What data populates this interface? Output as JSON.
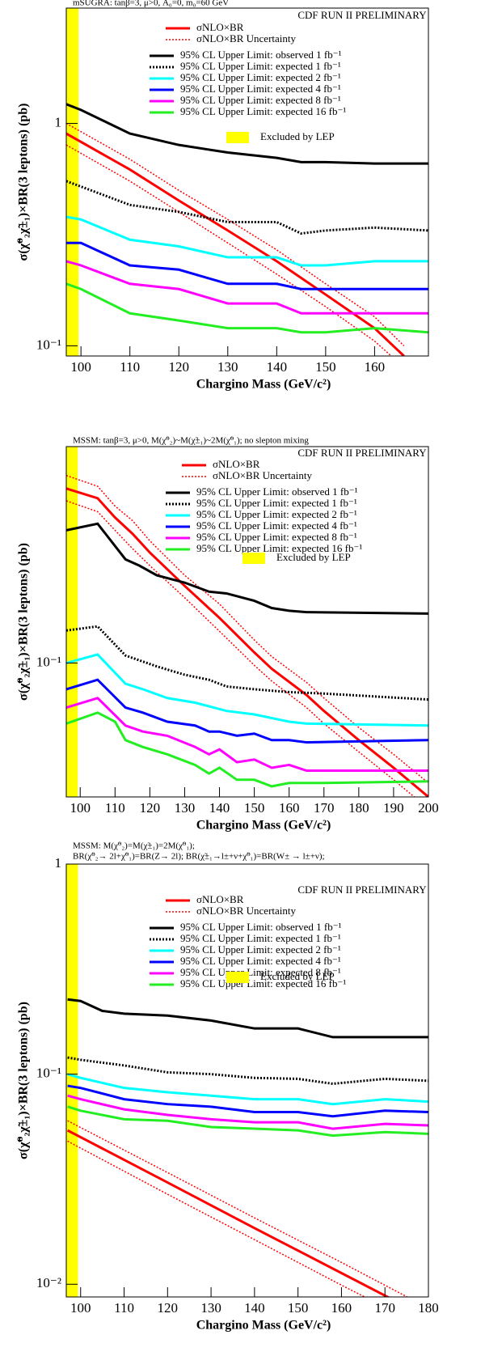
{
  "chart_data": [
    {
      "type": "line",
      "header": [
        "mSUGRA: tanβ=3, μ>0, A₀=0, m₀=60 GeV"
      ],
      "legend_title": "CDF RUN II PRELIMINARY",
      "x_label": "Chargino Mass (GeV/c²)",
      "y_label": "σ(χ̃⁰₂χ̃±₁)×BR(3 leptons) (pb)",
      "xlim": [
        97,
        171
      ],
      "ylim": [
        0.09,
        3.3
      ],
      "log_y": true,
      "xticks": [
        100,
        110,
        120,
        130,
        140,
        150,
        160
      ],
      "yticks": [
        1,
        {
          "value": 0.1,
          "label": "10⁻¹"
        }
      ],
      "sigma": {
        "name": "σNLO×BR",
        "color": "#ff0000",
        "x": [
          97,
          110,
          120,
          130,
          140,
          150,
          160,
          166
        ],
        "values": [
          0.9,
          0.62,
          0.45,
          0.33,
          0.24,
          0.17,
          0.12,
          0.09
        ]
      },
      "uncertainty": {
        "name": "σNLO×BR Uncertainty",
        "color": "#ff0000",
        "x": [
          97,
          110,
          120,
          130,
          140,
          150,
          160,
          166
        ],
        "upper": [
          1.0,
          0.69,
          0.5,
          0.37,
          0.27,
          0.19,
          0.135,
          0.1
        ],
        "lower": [
          0.8,
          0.55,
          0.4,
          0.29,
          0.21,
          0.15,
          0.105,
          0.08
        ]
      },
      "series": [
        {
          "name": "95% CL Upper Limit: observed 1 fb⁻¹",
          "color": "#000000",
          "style": "solid",
          "x": [
            97,
            100,
            110,
            120,
            130,
            140,
            145,
            150,
            160,
            171
          ],
          "values": [
            1.22,
            1.15,
            0.9,
            0.8,
            0.74,
            0.7,
            0.67,
            0.67,
            0.66,
            0.66
          ]
        },
        {
          "name": "95% CL Upper Limit: expected 1 fb⁻¹",
          "color": "#000000",
          "style": "dotted",
          "x": [
            97,
            100,
            110,
            120,
            130,
            140,
            145,
            150,
            160,
            171
          ],
          "values": [
            0.55,
            0.52,
            0.43,
            0.4,
            0.36,
            0.36,
            0.32,
            0.33,
            0.34,
            0.33
          ]
        },
        {
          "name": "95% CL Upper Limit: expected 2 fb⁻¹",
          "color": "#00ffff",
          "style": "solid",
          "x": [
            97,
            100,
            110,
            120,
            130,
            140,
            145,
            150,
            160,
            171
          ],
          "values": [
            0.38,
            0.37,
            0.3,
            0.28,
            0.25,
            0.25,
            0.23,
            0.23,
            0.24,
            0.24
          ]
        },
        {
          "name": "95% CL Upper Limit: expected 4 fb⁻¹",
          "color": "#0000ff",
          "style": "solid",
          "x": [
            97,
            100,
            110,
            120,
            130,
            140,
            145,
            150,
            160,
            171
          ],
          "values": [
            0.29,
            0.29,
            0.23,
            0.22,
            0.19,
            0.19,
            0.18,
            0.18,
            0.18,
            0.18
          ]
        },
        {
          "name": "95% CL Upper Limit: expected 8 fb⁻¹",
          "color": "#ff00ff",
          "style": "solid",
          "x": [
            97,
            100,
            110,
            120,
            130,
            140,
            145,
            150,
            160,
            171
          ],
          "values": [
            0.24,
            0.23,
            0.19,
            0.18,
            0.155,
            0.155,
            0.14,
            0.14,
            0.14,
            0.14
          ]
        },
        {
          "name": "95% CL Upper Limit: expected 16 fb⁻¹",
          "color": "#22ee22",
          "style": "solid",
          "x": [
            97,
            100,
            110,
            120,
            130,
            140,
            145,
            150,
            160,
            171
          ],
          "values": [
            0.19,
            0.18,
            0.14,
            0.13,
            0.12,
            0.12,
            0.115,
            0.115,
            0.12,
            0.115
          ]
        }
      ],
      "excluded": {
        "name": "Excluded by LEP",
        "color": "#ffff00",
        "xrange": [
          97,
          99.5
        ]
      }
    },
    {
      "type": "line",
      "header": [
        "MSSM: tanβ=3, μ>0, M(χ̃⁰₂)~M(χ̃±₁)~2M(χ̃⁰₁); no slepton mixing"
      ],
      "legend_title": "CDF RUN II PRELIMINARY",
      "x_label": "Chargino Mass (GeV/c²)",
      "y_label": "σ(χ̃⁰₂χ̃±₁)×BR(3 leptons) (pb)",
      "xlim": [
        96,
        200
      ],
      "ylim": [
        0.03,
        0.7
      ],
      "log_y": true,
      "xticks": [
        100,
        110,
        120,
        130,
        140,
        150,
        160,
        170,
        180,
        190,
        200
      ],
      "yticks": [
        {
          "value": 0.1,
          "label": "10⁻¹"
        }
      ],
      "sigma": {
        "name": "σNLO×BR",
        "color": "#ff0000",
        "x": [
          96,
          105,
          110,
          115,
          120,
          130,
          140,
          150,
          155,
          165,
          170,
          180,
          190,
          200
        ],
        "values": [
          0.48,
          0.44,
          0.37,
          0.32,
          0.27,
          0.2,
          0.15,
          0.11,
          0.095,
          0.075,
          0.065,
          0.05,
          0.039,
          0.03
        ]
      },
      "uncertainty": {
        "name": "σNLO×BR Uncertainty",
        "color": "#ff0000",
        "x": [
          96,
          105,
          110,
          115,
          120,
          130,
          140,
          150,
          155,
          165,
          170,
          180,
          190,
          200
        ],
        "upper": [
          0.54,
          0.49,
          0.41,
          0.36,
          0.3,
          0.22,
          0.17,
          0.123,
          0.106,
          0.084,
          0.073,
          0.056,
          0.044,
          0.034
        ],
        "lower": [
          0.43,
          0.39,
          0.33,
          0.28,
          0.24,
          0.18,
          0.133,
          0.098,
          0.085,
          0.067,
          0.058,
          0.045,
          0.035,
          0.027
        ]
      },
      "series": [
        {
          "name": "95% CL Upper Limit: observed 1 fb⁻¹",
          "color": "#000000",
          "style": "solid",
          "x": [
            96,
            105,
            113,
            117,
            122,
            130,
            137,
            142,
            150,
            155,
            160,
            165,
            200
          ],
          "values": [
            0.33,
            0.35,
            0.254,
            0.24,
            0.22,
            0.206,
            0.19,
            0.187,
            0.175,
            0.164,
            0.16,
            0.158,
            0.156
          ]
        },
        {
          "name": "95% CL Upper Limit: expected 1 fb⁻¹",
          "color": "#000000",
          "style": "dotted",
          "x": [
            96,
            105,
            113,
            122,
            130,
            137,
            142,
            150,
            160,
            170,
            200
          ],
          "values": [
            0.134,
            0.139,
            0.107,
            0.097,
            0.09,
            0.086,
            0.081,
            0.079,
            0.077,
            0.076,
            0.072
          ]
        },
        {
          "name": "95% CL Upper Limit: expected 2 fb⁻¹",
          "color": "#00ffff",
          "style": "solid",
          "x": [
            96,
            105,
            113,
            118,
            125,
            133,
            142,
            150,
            160,
            165,
            200
          ],
          "values": [
            0.1,
            0.108,
            0.083,
            0.079,
            0.073,
            0.07,
            0.065,
            0.063,
            0.059,
            0.058,
            0.057
          ]
        },
        {
          "name": "95% CL Upper Limit: expected 4 fb⁻¹",
          "color": "#0000ff",
          "style": "solid",
          "x": [
            96,
            105,
            113,
            118,
            125,
            133,
            137,
            140,
            145,
            150,
            155,
            160,
            165,
            200
          ],
          "values": [
            0.079,
            0.086,
            0.067,
            0.064,
            0.059,
            0.057,
            0.054,
            0.054,
            0.052,
            0.053,
            0.05,
            0.05,
            0.049,
            0.05
          ]
        },
        {
          "name": "95% CL Upper Limit: expected 8 fb⁻¹",
          "color": "#ff00ff",
          "style": "solid",
          "x": [
            96,
            105,
            113,
            118,
            125,
            133,
            137,
            140,
            145,
            150,
            155,
            160,
            165,
            200
          ],
          "values": [
            0.067,
            0.073,
            0.057,
            0.054,
            0.052,
            0.047,
            0.044,
            0.046,
            0.041,
            0.042,
            0.039,
            0.04,
            0.038,
            0.038
          ]
        },
        {
          "name": "95% CL Upper Limit: expected 16 fb⁻¹",
          "color": "#22ee22",
          "style": "solid",
          "x": [
            96,
            105,
            110,
            113,
            118,
            125,
            133,
            137,
            140,
            145,
            150,
            155,
            160,
            170,
            200
          ],
          "values": [
            0.058,
            0.064,
            0.059,
            0.05,
            0.047,
            0.044,
            0.04,
            0.037,
            0.039,
            0.035,
            0.035,
            0.033,
            0.034,
            0.034,
            0.0345
          ]
        }
      ],
      "excluded": {
        "name": "Excluded by LEP",
        "color": "#ffff00",
        "xrange": [
          96,
          99.3
        ]
      }
    },
    {
      "type": "line",
      "header": [
        "MSSM: M(χ̃⁰₂)=M(χ̃±₁)=2M(χ̃⁰₁);",
        "BR(χ̃⁰₂→ 2l+χ̃⁰₁)=BR(Z→ 2l);  BR(χ̃±₁→l±+ν+χ̃⁰₁)=BR(W± → l±+ν);"
      ],
      "legend_title": "CDF RUN II PRELIMINARY",
      "x_label": "Chargino Mass (GeV/c²)",
      "y_label": "σ(χ̃⁰₂χ̃±₁)×BR(3 leptons) (pb)",
      "xlim": [
        96.7,
        180
      ],
      "ylim": [
        0.0087,
        1
      ],
      "log_y": true,
      "xticks": [
        100,
        110,
        120,
        130,
        140,
        150,
        160,
        170,
        180
      ],
      "yticks": [
        1,
        {
          "value": 0.1,
          "label": "10⁻¹"
        },
        {
          "value": 0.01,
          "label": "10⁻²"
        }
      ],
      "sigma": {
        "name": "σNLO×BR",
        "color": "#ff0000",
        "x": [
          97,
          120,
          140,
          160,
          180
        ],
        "values": [
          0.054,
          0.0305,
          0.0185,
          0.0113,
          0.0069
        ]
      },
      "uncertainty": {
        "name": "σNLO×BR Uncertainty",
        "color": "#ff0000",
        "x": [
          97,
          120,
          140,
          160,
          180
        ],
        "upper": [
          0.06,
          0.034,
          0.0207,
          0.0127,
          0.0077
        ],
        "lower": [
          0.048,
          0.0268,
          0.0163,
          0.0099,
          0.0061
        ]
      },
      "series": [
        {
          "name": "95% CL Upper Limit: observed 1 fb⁻¹",
          "color": "#000000",
          "style": "solid",
          "x": [
            97,
            100,
            105,
            110,
            120,
            130,
            140,
            150,
            158,
            170,
            180
          ],
          "values": [
            0.227,
            0.223,
            0.2,
            0.194,
            0.19,
            0.18,
            0.165,
            0.165,
            0.15,
            0.15,
            0.15
          ]
        },
        {
          "name": "95% CL Upper Limit: expected 1 fb⁻¹",
          "color": "#000000",
          "style": "dotted",
          "x": [
            97,
            100,
            110,
            120,
            130,
            140,
            150,
            158,
            170,
            180
          ],
          "values": [
            0.12,
            0.117,
            0.11,
            0.102,
            0.1,
            0.096,
            0.095,
            0.09,
            0.095,
            0.093
          ]
        },
        {
          "name": "95% CL Upper Limit: expected 2 fb⁻¹",
          "color": "#00ffff",
          "style": "solid",
          "x": [
            97,
            100,
            110,
            120,
            130,
            140,
            150,
            158,
            170,
            180
          ],
          "values": [
            0.1,
            0.096,
            0.086,
            0.082,
            0.079,
            0.076,
            0.076,
            0.072,
            0.076,
            0.074
          ]
        },
        {
          "name": "95% CL Upper Limit: expected 4 fb⁻¹",
          "color": "#0000ff",
          "style": "solid",
          "x": [
            97,
            100,
            110,
            120,
            130,
            140,
            150,
            158,
            170,
            180
          ],
          "values": [
            0.088,
            0.086,
            0.076,
            0.072,
            0.07,
            0.066,
            0.066,
            0.063,
            0.067,
            0.066
          ]
        },
        {
          "name": "95% CL Upper Limit: expected 8 fb⁻¹",
          "color": "#ff00ff",
          "style": "solid",
          "x": [
            97,
            100,
            110,
            120,
            130,
            140,
            150,
            158,
            170,
            180
          ],
          "values": [
            0.079,
            0.076,
            0.068,
            0.064,
            0.061,
            0.059,
            0.059,
            0.055,
            0.058,
            0.057
          ]
        },
        {
          "name": "95% CL Upper Limit: expected 16 fb⁻¹",
          "color": "#22ee22",
          "style": "solid",
          "x": [
            97,
            100,
            110,
            120,
            130,
            140,
            150,
            158,
            170,
            180
          ],
          "values": [
            0.07,
            0.067,
            0.061,
            0.06,
            0.056,
            0.055,
            0.054,
            0.051,
            0.053,
            0.052
          ]
        }
      ],
      "excluded": {
        "name": "Excluded by LEP",
        "color": "#ffff00",
        "xrange": [
          96.7,
          99.4
        ]
      }
    }
  ]
}
